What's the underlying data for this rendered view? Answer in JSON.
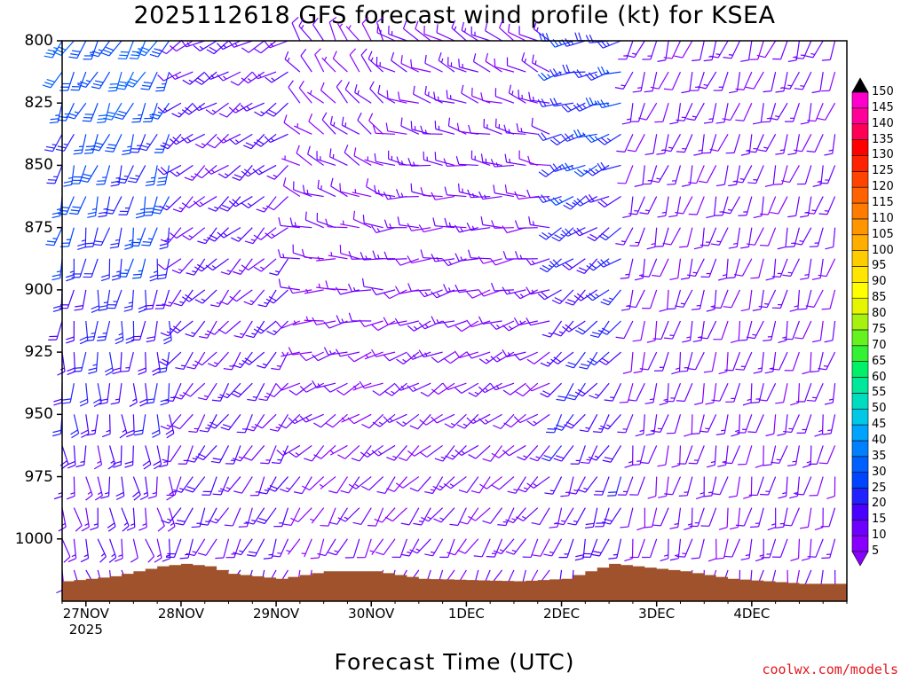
{
  "chart_data": {
    "type": "wind-barb-time-height",
    "title": "2025112618 GFS forecast wind profile (kt) for KSEA",
    "xlabel": "Forecast Time (UTC)",
    "ylabel": "",
    "y_axis": {
      "unit": "hPa",
      "range": [
        800,
        1025
      ],
      "ticks": [
        800,
        825,
        850,
        875,
        900,
        925,
        950,
        975,
        1000
      ]
    },
    "x_axis": {
      "range_hours": [
        0,
        198
      ],
      "ticks": [
        {
          "label": "27NOV",
          "sub": "2025",
          "hour": 6
        },
        {
          "label": "28NOV",
          "sub": "",
          "hour": 30
        },
        {
          "label": "29NOV",
          "sub": "",
          "hour": 54
        },
        {
          "label": "30NOV",
          "sub": "",
          "hour": 78
        },
        {
          "label": "1DEC",
          "sub": "",
          "hour": 102
        },
        {
          "label": "2DEC",
          "sub": "",
          "hour": 126
        },
        {
          "label": "3DEC",
          "sub": "",
          "hour": 150
        },
        {
          "label": "4DEC",
          "sub": "",
          "hour": 174
        }
      ]
    },
    "colorbar": {
      "unit": "kt",
      "levels": [
        5,
        10,
        15,
        20,
        25,
        30,
        35,
        40,
        45,
        50,
        55,
        60,
        65,
        70,
        75,
        80,
        85,
        90,
        95,
        100,
        105,
        110,
        115,
        120,
        125,
        130,
        135,
        140,
        145,
        150
      ],
      "colors": [
        "#8a00ff",
        "#6e00ff",
        "#4a00ff",
        "#2222ff",
        "#0044ff",
        "#0060ff",
        "#0080ff",
        "#00a4ff",
        "#00c8e6",
        "#00dcc0",
        "#00e89a",
        "#00f06a",
        "#33f133",
        "#66f21e",
        "#a6f10f",
        "#e6f500",
        "#ffff00",
        "#ffe600",
        "#ffcc00",
        "#ffae00",
        "#ff9600",
        "#ff7c00",
        "#ff6200",
        "#ff4400",
        "#ff2200",
        "#ff0000",
        "#ff0055",
        "#ff0099",
        "#ff00cc",
        "#ff00ff"
      ]
    },
    "barb_levels_hpa": [
      800,
      812.5,
      825,
      837.5,
      850,
      862.5,
      875,
      887.5,
      900,
      912.5,
      925,
      937.5,
      950,
      962.5,
      975,
      987.5,
      1000,
      1012.5
    ],
    "barb_hours": [
      0,
      3,
      6,
      9,
      12,
      15,
      18,
      21,
      24,
      27,
      30,
      33,
      36,
      39,
      42,
      45,
      48,
      51,
      54,
      57,
      60,
      63,
      66,
      69,
      72,
      75,
      78,
      81,
      84,
      87,
      90,
      93,
      96,
      99,
      102,
      105,
      108,
      111,
      114,
      117,
      120,
      123,
      126,
      129,
      132,
      135,
      138,
      141,
      144,
      147,
      150,
      153,
      156,
      159,
      162,
      165,
      168,
      171,
      174,
      177,
      180,
      183,
      186,
      189,
      192,
      195
    ],
    "wind_regimes": [
      {
        "from_hour": 0,
        "to_hour": 30,
        "upper_dir_deg": 210,
        "upper_speed_kt": 30,
        "lower_dir_deg": 160,
        "lower_speed_kt": 12
      },
      {
        "from_hour": 30,
        "to_hour": 60,
        "upper_dir_deg": 240,
        "upper_speed_kt": 15,
        "lower_dir_deg": 200,
        "lower_speed_kt": 15
      },
      {
        "from_hour": 60,
        "to_hour": 84,
        "upper_dir_deg": 330,
        "upper_speed_kt": 10,
        "lower_dir_deg": 190,
        "lower_speed_kt": 10
      },
      {
        "from_hour": 84,
        "to_hour": 126,
        "upper_dir_deg": 300,
        "upper_speed_kt": 12,
        "lower_dir_deg": 200,
        "lower_speed_kt": 12
      },
      {
        "from_hour": 126,
        "to_hour": 144,
        "upper_dir_deg": 260,
        "upper_speed_kt": 25,
        "lower_dir_deg": 190,
        "lower_speed_kt": 15
      },
      {
        "from_hour": 144,
        "to_hour": 198,
        "upper_dir_deg": 200,
        "upper_speed_kt": 12,
        "lower_dir_deg": 190,
        "lower_speed_kt": 12
      }
    ],
    "terrain_surface_hpa": [
      {
        "hour": 0,
        "hpa": 1017
      },
      {
        "hour": 12,
        "hpa": 1015
      },
      {
        "hour": 24,
        "hpa": 1011
      },
      {
        "hour": 30,
        "hpa": 1010
      },
      {
        "hour": 36,
        "hpa": 1011
      },
      {
        "hour": 42,
        "hpa": 1014
      },
      {
        "hour": 54,
        "hpa": 1016
      },
      {
        "hour": 66,
        "hpa": 1013
      },
      {
        "hour": 78,
        "hpa": 1013
      },
      {
        "hour": 90,
        "hpa": 1016
      },
      {
        "hour": 114,
        "hpa": 1017
      },
      {
        "hour": 126,
        "hpa": 1016
      },
      {
        "hour": 138,
        "hpa": 1010
      },
      {
        "hour": 144,
        "hpa": 1011
      },
      {
        "hour": 156,
        "hpa": 1013
      },
      {
        "hour": 168,
        "hpa": 1016
      },
      {
        "hour": 186,
        "hpa": 1018
      },
      {
        "hour": 198,
        "hpa": 1018
      }
    ]
  },
  "terrain_color": "#a0522d",
  "credit": "coolwx.com/models"
}
